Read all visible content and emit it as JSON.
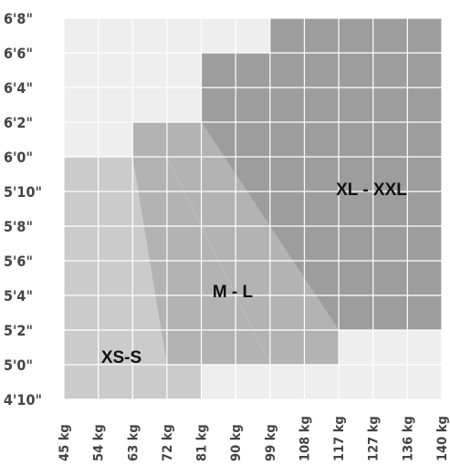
{
  "chart_data": {
    "type": "area",
    "title": "",
    "xlabel": "",
    "ylabel": "",
    "x_tick_labels": [
      "45 kg",
      "54 kg",
      "63 kg",
      "72 kg",
      "81 kg",
      "90 kg",
      "99 kg",
      "108 kg",
      "117 kg",
      "127 kg",
      "136 kg",
      "140 kg"
    ],
    "y_tick_labels": [
      "6'8\"",
      "6'6\"",
      "6'4\"",
      "6'2\"",
      "6'0\"",
      "5'10\"",
      "5'8\"",
      "5'6\"",
      "5'4\"",
      "5'2\"",
      "5'0\"",
      "4'10\""
    ],
    "grid": true,
    "zones": [
      {
        "name": "XS-S",
        "label": "XS-S",
        "color": "#cbcbcb",
        "label_at": {
          "x": 60,
          "y": "5'1\""
        },
        "boundary": [
          {
            "x": "45 kg",
            "y": "6'0\""
          },
          {
            "x": "63 kg",
            "y": "6'0\""
          },
          {
            "x": "81 kg",
            "y": "5'0\""
          },
          {
            "x": "81 kg",
            "y": "4'10\""
          },
          {
            "x": "45 kg",
            "y": "4'10\""
          }
        ]
      },
      {
        "name": "M-L",
        "label": "M - L",
        "color": "#b3b3b3",
        "label_at": {
          "x": 97,
          "y": "5'4\""
        },
        "boundary": [
          {
            "x": "63 kg",
            "y": "6'2\""
          },
          {
            "x": "81 kg",
            "y": "6'2\""
          },
          {
            "x": "117 kg",
            "y": "5'2\""
          },
          {
            "x": "117 kg",
            "y": "5'0\""
          },
          {
            "x": "72 kg",
            "y": "5'0\""
          },
          {
            "x": "63 kg",
            "y": "6'0\""
          }
        ]
      },
      {
        "name": "XL-XXL",
        "label": "XL - XXL",
        "color": "#9d9d9d",
        "label_at": {
          "x": 127,
          "y": "5'10\""
        },
        "boundary": [
          {
            "x": "99 kg",
            "y": "6'8\""
          },
          {
            "x": "140 kg",
            "y": "6'8\""
          },
          {
            "x": "140 kg",
            "y": "5'2\""
          },
          {
            "x": "117 kg",
            "y": "5'2\""
          },
          {
            "x": "81 kg",
            "y": "6'2\""
          },
          {
            "x": "81 kg",
            "y": "6'6\""
          },
          {
            "x": "99 kg",
            "y": "6'6\""
          }
        ]
      }
    ],
    "colors": {
      "background_cell": "#eeeeee",
      "grid_line": "#ffffff",
      "tick_text": "#444444",
      "label_text": "#111111"
    }
  }
}
